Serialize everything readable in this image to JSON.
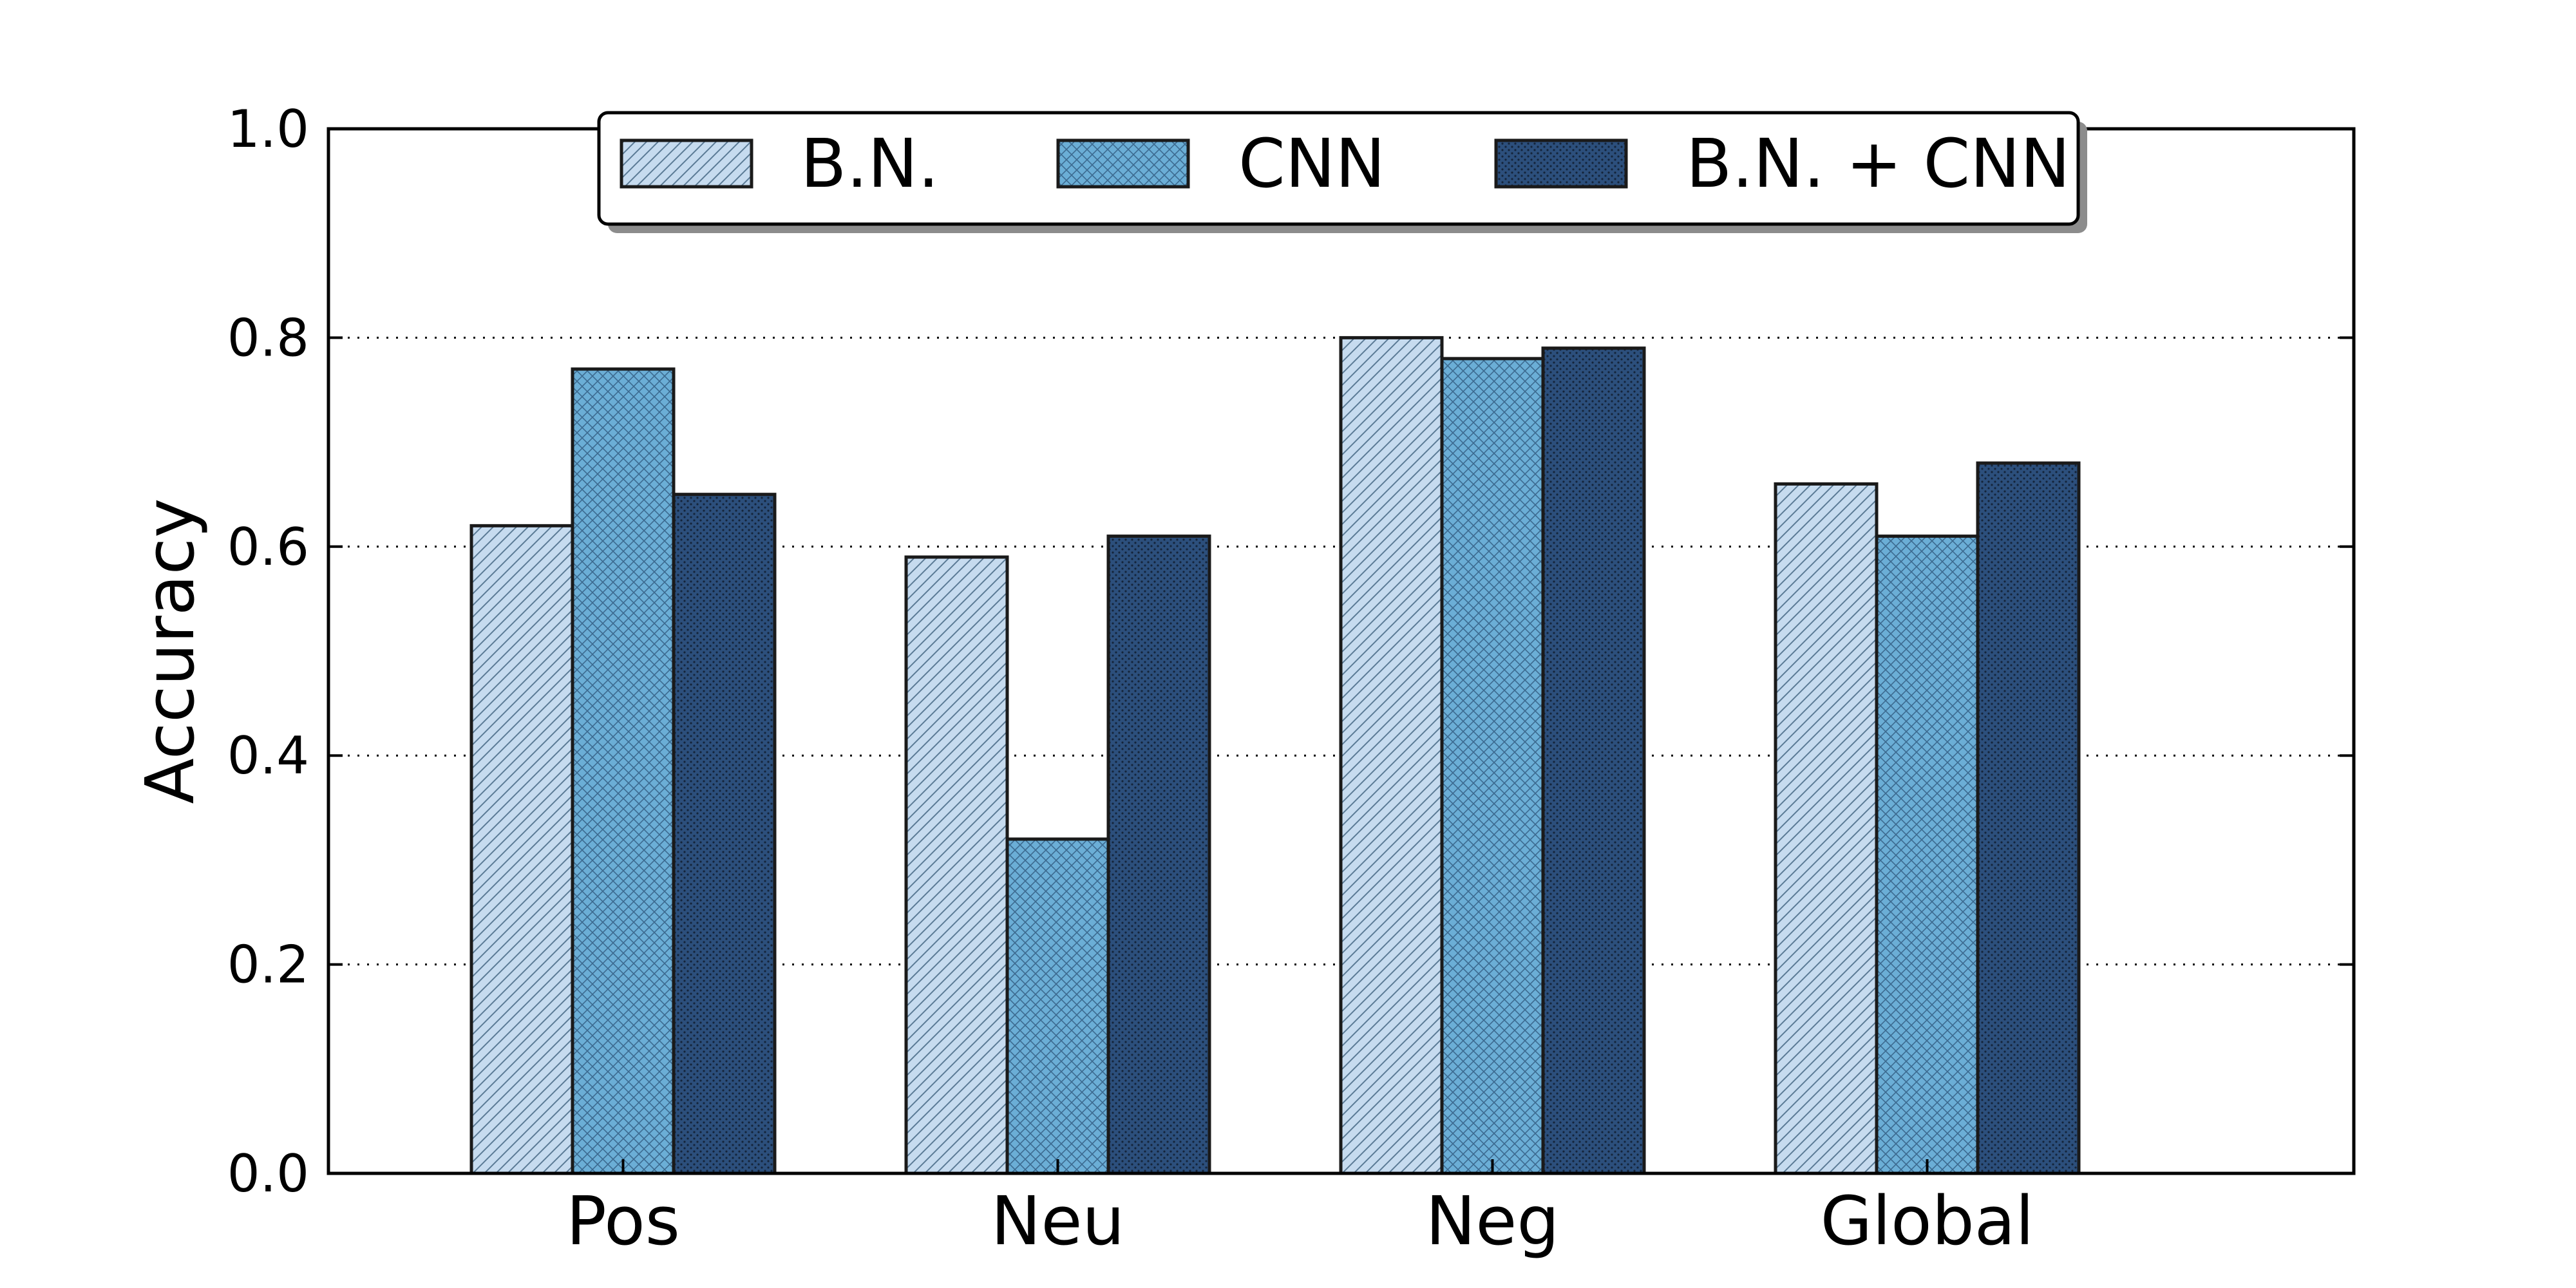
{
  "chart_data": {
    "type": "bar",
    "categories": [
      "Pos",
      "Neu",
      "Neg",
      "Global"
    ],
    "series": [
      {
        "name": "B.N.",
        "values": [
          0.62,
          0.59,
          0.8,
          0.66
        ],
        "color": "#c6dbef",
        "pattern": "diagonal-hatch"
      },
      {
        "name": "CNN",
        "values": [
          0.77,
          0.32,
          0.78,
          0.61
        ],
        "color": "#6baed6",
        "pattern": "crosshatch"
      },
      {
        "name": "B.N. + CNN",
        "values": [
          0.65,
          0.61,
          0.79,
          0.68
        ],
        "color": "#2c4f7c",
        "pattern": "dots"
      }
    ],
    "ylabel": "Accuracy",
    "xlabel": "",
    "title": "",
    "ylim": [
      0,
      1.0
    ],
    "yticks": [
      0.0,
      0.2,
      0.4,
      0.6,
      0.8,
      1.0
    ],
    "ytick_labels": [
      "0.0",
      "0.2",
      "0.4",
      "0.6",
      "0.8",
      "1.0"
    ],
    "grid": "horizontal-dotted",
    "legend_position": "top-center"
  }
}
